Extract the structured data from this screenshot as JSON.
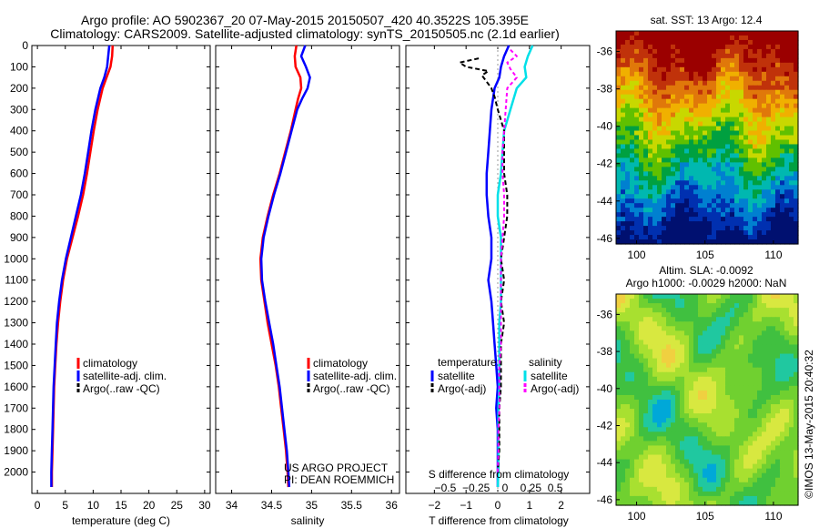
{
  "header": {
    "title_line1": "Argo profile: AO 5902367_20 07-May-2015 20150507_420 40.3522S 105.395E",
    "title_line2": "Climatology: CARS2009. Satellite-adjusted climatology: synTS_20150505.nc (2.1d earlier)"
  },
  "side_caption": "©IMOS 13-May-2015 20:40:32",
  "project_note": {
    "line1": "US ARGO PROJECT",
    "line2": "PI: DEAN ROEMMICH"
  },
  "colors": {
    "climatology": "#ff0000",
    "satellite": "#0000ff",
    "argo": "#000000",
    "sal_satellite": "#00e0e8",
    "sal_argo": "#ff00ff"
  },
  "chart_data": [
    {
      "id": "temperature",
      "type": "line",
      "xlabel": "temperature (deg C)",
      "ylabel": "",
      "xlim": [
        -1,
        31
      ],
      "ylim": [
        2100,
        0
      ],
      "xticks": [
        0,
        5,
        10,
        15,
        20,
        25,
        30
      ],
      "yticks": [
        0,
        100,
        200,
        300,
        400,
        500,
        600,
        700,
        800,
        900,
        1000,
        1100,
        1200,
        1300,
        1400,
        1500,
        1600,
        1700,
        1800,
        1900,
        2000
      ],
      "legend": [
        "climatology",
        "satellite-adj. clim.",
        "Argo(..raw -QC)"
      ],
      "series": [
        {
          "name": "climatology",
          "depth": [
            0,
            50,
            100,
            150,
            200,
            300,
            400,
            500,
            600,
            700,
            800,
            900,
            1000,
            1100,
            1200,
            1300,
            1400,
            1500,
            1600,
            1700,
            1800,
            1900,
            2000,
            2070
          ],
          "values": [
            13.5,
            13.4,
            13.1,
            12.4,
            11.7,
            10.8,
            10.1,
            9.5,
            8.9,
            8.2,
            7.3,
            6.3,
            5.3,
            4.6,
            4.1,
            3.7,
            3.4,
            3.2,
            3.0,
            2.9,
            2.8,
            2.7,
            2.6,
            2.6
          ]
        },
        {
          "name": "satellite-adj. clim.",
          "depth": [
            0,
            50,
            100,
            150,
            200,
            300,
            400,
            500,
            600,
            700,
            800,
            900,
            1000,
            1100,
            1200,
            1300,
            1400,
            1500,
            1600,
            1700,
            1800,
            1900,
            2000,
            2070
          ],
          "values": [
            12.9,
            12.7,
            12.5,
            12.0,
            11.3,
            10.4,
            9.7,
            9.1,
            8.5,
            7.8,
            6.9,
            6.0,
            5.1,
            4.4,
            3.9,
            3.5,
            3.3,
            3.1,
            2.9,
            2.8,
            2.7,
            2.6,
            2.5,
            2.5
          ]
        }
      ]
    },
    {
      "id": "salinity",
      "type": "line",
      "xlabel": "salinity",
      "ylabel": "",
      "xlim": [
        33.8,
        36.1
      ],
      "ylim": [
        2100,
        0
      ],
      "xticks": [
        34,
        34.5,
        35,
        35.5,
        36
      ],
      "legend": [
        "climatology",
        "satellite-adj. clim.",
        "Argo(..raw -QC)"
      ],
      "series": [
        {
          "name": "climatology",
          "depth": [
            0,
            50,
            100,
            150,
            200,
            250,
            300,
            400,
            500,
            600,
            700,
            800,
            900,
            1000,
            1100,
            1200,
            1300,
            1400,
            1500,
            1600,
            1700,
            1800,
            1900,
            2000,
            2070
          ],
          "values": [
            34.81,
            34.79,
            34.8,
            34.86,
            34.87,
            34.83,
            34.8,
            34.74,
            34.67,
            34.6,
            34.52,
            34.45,
            34.39,
            34.36,
            34.37,
            34.41,
            34.45,
            34.5,
            34.55,
            34.59,
            34.62,
            34.65,
            34.68,
            34.7,
            34.71
          ]
        },
        {
          "name": "satellite-adj. clim.",
          "depth": [
            0,
            50,
            100,
            150,
            200,
            250,
            300,
            400,
            500,
            600,
            700,
            800,
            900,
            1000,
            1100,
            1200,
            1300,
            1400,
            1500,
            1600,
            1700,
            1800,
            1900,
            2000,
            2070
          ],
          "values": [
            34.92,
            34.87,
            34.93,
            34.98,
            34.95,
            34.88,
            34.82,
            34.75,
            34.68,
            34.61,
            34.53,
            34.46,
            34.4,
            34.37,
            34.38,
            34.42,
            34.47,
            34.52,
            34.56,
            34.6,
            34.63,
            34.66,
            34.69,
            34.71,
            34.72
          ]
        }
      ]
    },
    {
      "id": "difference",
      "type": "line",
      "xlabel": "T difference from climatology",
      "x2label": "S difference from climatology",
      "xlim": [
        -2.9,
        2.9
      ],
      "ylim": [
        2100,
        0
      ],
      "xticks": [
        -2,
        -1,
        0,
        1,
        2
      ],
      "xtick_labels": [
        "−2",
        "−1",
        "0",
        "1",
        "2"
      ],
      "x2ticks_label": "−0.5  −0.25    0    0.25  0.5",
      "legend_titles": [
        "temperature",
        "salinity"
      ],
      "legend": [
        "satellite",
        "Argo(-adj)",
        "satellite",
        "Argo(-adj)"
      ],
      "series": [
        {
          "name": "temperature satellite",
          "depth": [
            0,
            50,
            100,
            150,
            200,
            300,
            400,
            500,
            600,
            700,
            800,
            900,
            1000,
            1100,
            1200,
            1300,
            1400,
            1500,
            1600,
            1700,
            1800,
            1900,
            2000,
            2070
          ],
          "values": [
            0.35,
            0.2,
            0.1,
            0.05,
            -0.1,
            -0.2,
            -0.25,
            -0.3,
            -0.35,
            -0.35,
            -0.3,
            -0.2,
            -0.2,
            -0.3,
            -0.2,
            -0.15,
            -0.1,
            -0.05,
            0.0,
            -0.05,
            0.0,
            0.0,
            0.0,
            0.0
          ]
        },
        {
          "name": "salinity satellite",
          "depth": [
            0,
            50,
            100,
            150,
            200,
            300,
            400,
            500,
            600,
            700,
            800,
            900,
            1000,
            1100,
            1200,
            1300,
            1400,
            1500,
            1600,
            1700,
            1800,
            1900,
            2000,
            2070
          ],
          "values": [
            1.1,
            0.95,
            0.85,
            0.9,
            0.6,
            0.4,
            0.2,
            0.15,
            0.1,
            0.0,
            0.0,
            0.1,
            0.1,
            0.1,
            0.1,
            0.05,
            0.05,
            0.05,
            0.05,
            0.02,
            0.02,
            0.02,
            0.02,
            0.0
          ]
        },
        {
          "name": "temperature argo",
          "depth": [
            60,
            80,
            100,
            120,
            140,
            160,
            180,
            200,
            240,
            300,
            400,
            500,
            600,
            700,
            800,
            900,
            1000,
            1100,
            1200,
            1300,
            1400,
            1500,
            1600,
            1700,
            1800,
            1900,
            2000
          ],
          "values": [
            -0.6,
            -1.2,
            -1.0,
            -0.3,
            -0.5,
            -0.4,
            -0.3,
            -0.2,
            -0.1,
            0.0,
            0.2,
            0.2,
            0.2,
            0.3,
            0.3,
            0.2,
            0.1,
            0.2,
            0.1,
            0.2,
            0.1,
            0.1,
            0.1,
            0.05,
            0.05,
            0.05,
            0.0
          ]
        },
        {
          "name": "salinity argo",
          "depth": [
            20,
            50,
            80,
            110,
            150,
            200,
            300,
            400,
            500,
            600,
            700,
            800,
            900,
            1000,
            1100,
            1200,
            1300,
            1400,
            1500,
            1600,
            1700,
            1800,
            1900,
            2000
          ],
          "values": [
            0.4,
            0.6,
            0.3,
            0.4,
            0.6,
            0.3,
            0.25,
            0.2,
            0.15,
            0.15,
            0.2,
            0.2,
            0.15,
            0.1,
            0.1,
            0.1,
            0.1,
            0.1,
            0.05,
            0.05,
            0.05,
            0.02,
            0.02,
            0.0
          ]
        }
      ]
    },
    {
      "id": "sst_map",
      "type": "heatmap",
      "title": "sat. SST: 13 Argo: 12.4",
      "xticks": [
        100,
        105,
        110
      ],
      "yticks": [
        -36,
        -38,
        -40,
        -42,
        -44,
        -46
      ],
      "xlim": [
        98.5,
        111.8
      ],
      "ylim": [
        -46.3,
        -34.9
      ]
    },
    {
      "id": "sla_map",
      "type": "heatmap",
      "title_line1": "Altim. SLA: -0.0092",
      "title_line2": "Argo h1000: -0.0029 h2000: NaN",
      "xticks": [
        100,
        105,
        110
      ],
      "yticks": [
        -36,
        -38,
        -40,
        -42,
        -44,
        -46
      ],
      "xlim": [
        98.5,
        111.8
      ],
      "ylim": [
        -46.3,
        -34.9
      ]
    }
  ]
}
